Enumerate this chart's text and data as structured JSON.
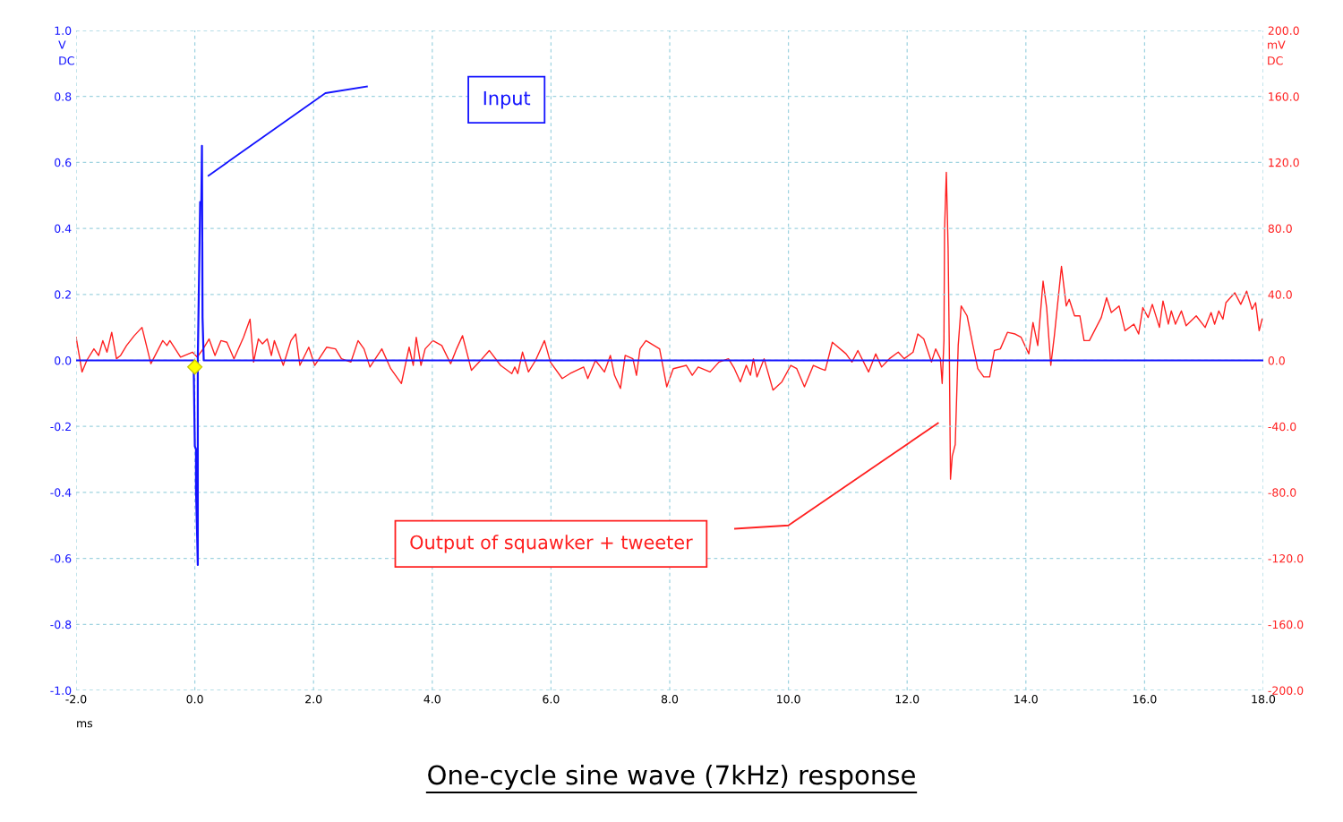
{
  "chart_data": {
    "type": "line",
    "title": "One-cycle sine wave (7kHz) response",
    "xlabel": "ms",
    "ylabel": "V\nDC",
    "y2label": "mV\nDC",
    "xlim": [
      -2.0,
      18.0
    ],
    "xticks": [
      {
        "value": -2,
        "label": "-2.0"
      },
      {
        "value": 0,
        "label": "0.0"
      },
      {
        "value": 2,
        "label": "2.0"
      },
      {
        "value": 4,
        "label": "4.0"
      },
      {
        "value": 6,
        "label": "6.0"
      },
      {
        "value": 8,
        "label": "8.0"
      },
      {
        "value": 10,
        "label": "10.0"
      },
      {
        "value": 12,
        "label": "12.0"
      },
      {
        "value": 14,
        "label": "14.0"
      },
      {
        "value": 16,
        "label": "16.0"
      },
      {
        "value": 18,
        "label": "18.0"
      }
    ],
    "ylim": [
      -1.0,
      1.0
    ],
    "yticks": [
      {
        "value": -1.0,
        "label": "-1.0"
      },
      {
        "value": -0.8,
        "label": "-0.8"
      },
      {
        "value": -0.6,
        "label": "-0.6"
      },
      {
        "value": -0.4,
        "label": "-0.4"
      },
      {
        "value": -0.2,
        "label": "-0.2"
      },
      {
        "value": 0,
        "label": "0.0"
      },
      {
        "value": 0.2,
        "label": "0.2"
      },
      {
        "value": 0.4,
        "label": "0.4"
      },
      {
        "value": 0.6,
        "label": "0.6"
      },
      {
        "value": 0.8,
        "label": "0.8"
      },
      {
        "value": 1.0,
        "label": "1.0"
      }
    ],
    "y2lim": [
      -200.0,
      200.0
    ],
    "y2ticks": [
      {
        "value": -200,
        "label": "-200.0"
      },
      {
        "value": -160,
        "label": "-160.0"
      },
      {
        "value": -120,
        "label": "-120.0"
      },
      {
        "value": -80,
        "label": "-80.0"
      },
      {
        "value": -40,
        "label": "-40.0"
      },
      {
        "value": 0,
        "label": "0.0"
      },
      {
        "value": 40,
        "label": "40.0"
      },
      {
        "value": 80,
        "label": "80.0"
      },
      {
        "value": 120,
        "label": "120.0"
      },
      {
        "value": 160,
        "label": "160.0"
      },
      {
        "value": 200,
        "label": "200.0"
      }
    ],
    "grid": true,
    "marker": "none",
    "line_style": "solid",
    "series": [
      {
        "color": "#ff2020",
        "axis": "y2",
        "x": [
          -2.0,
          -1.9,
          -1.82,
          -1.7,
          -1.62,
          -1.55,
          -1.48,
          -1.4,
          -1.32,
          -1.25,
          -1.15,
          -1.02,
          -0.89,
          -0.74,
          -0.54,
          -0.47,
          -0.42,
          -0.24,
          -0.04,
          0.04,
          0.14,
          0.24,
          0.34,
          0.44,
          0.54,
          0.66,
          0.82,
          0.93,
          0.99,
          1.07,
          1.14,
          1.22,
          1.29,
          1.34,
          1.49,
          1.62,
          1.7,
          1.77,
          1.92,
          2.02,
          2.22,
          2.37,
          2.47,
          2.63,
          2.75,
          2.85,
          2.95,
          3.15,
          3.3,
          3.48,
          3.61,
          3.68,
          3.73,
          3.81,
          3.88,
          4.01,
          4.16,
          4.31,
          4.41,
          4.51,
          4.66,
          4.79,
          4.96,
          5.15,
          5.34,
          5.39,
          5.44,
          5.52,
          5.62,
          5.74,
          5.89,
          5.99,
          6.19,
          6.32,
          6.55,
          6.62,
          6.75,
          6.9,
          7.0,
          7.07,
          7.17,
          7.25,
          7.38,
          7.44,
          7.5,
          7.6,
          7.83,
          7.95,
          8.06,
          8.28,
          8.38,
          8.48,
          8.68,
          8.83,
          8.99,
          9.09,
          9.19,
          9.29,
          9.36,
          9.41,
          9.47,
          9.59,
          9.74,
          9.89,
          10.04,
          10.14,
          10.27,
          10.42,
          10.54,
          10.62,
          10.74,
          10.97,
          11.07,
          11.17,
          11.35,
          11.47,
          11.57,
          11.7,
          11.85,
          11.95,
          12.1,
          12.18,
          12.28,
          12.41,
          12.48,
          12.56,
          12.59,
          12.62,
          12.63,
          12.66,
          12.69,
          12.71,
          12.73,
          12.76,
          12.81,
          12.86,
          12.91,
          13.01,
          13.12,
          13.19,
          13.29,
          13.39,
          13.47,
          13.57,
          13.69,
          13.82,
          13.92,
          14.05,
          14.12,
          14.2,
          14.29,
          14.35,
          14.42,
          14.48,
          14.6,
          14.68,
          14.73,
          14.82,
          14.91,
          14.98,
          15.07,
          15.27,
          15.36,
          15.44,
          15.57,
          15.67,
          15.82,
          15.9,
          15.97,
          16.06,
          16.13,
          16.25,
          16.31,
          16.4,
          16.45,
          16.52,
          16.62,
          16.7,
          16.87,
          17.02,
          17.12,
          17.18,
          17.25,
          17.32,
          17.37,
          17.52,
          17.62,
          17.72,
          17.81,
          17.87,
          17.93,
          17.98
        ],
        "values": [
          14,
          -7,
          0,
          7,
          3,
          12,
          5,
          17,
          1,
          3,
          9,
          15,
          20,
          -2,
          12,
          9,
          12,
          2,
          5,
          2,
          7,
          13,
          3,
          12,
          11,
          1,
          14,
          25,
          -1,
          13,
          10,
          13,
          3,
          12,
          -3,
          12,
          16,
          -3,
          8,
          -3,
          8,
          7,
          1,
          -1,
          12,
          7,
          -4,
          7,
          -5,
          -14,
          8,
          -3,
          14,
          -3,
          7,
          12,
          9,
          -2,
          7,
          15,
          -6,
          -1,
          6,
          -3,
          -8,
          -4,
          -8,
          5,
          -7,
          0,
          12,
          -1,
          -11,
          -8,
          -4,
          -11,
          0,
          -7,
          3,
          -9,
          -17,
          3,
          1,
          -9,
          7,
          12,
          7,
          -16,
          -5,
          -3,
          -9,
          -4,
          -7,
          -1,
          1,
          -5,
          -13,
          -3,
          -9,
          1,
          -10,
          1,
          -18,
          -13,
          -3,
          -5,
          -16,
          -3,
          -5,
          -6,
          11,
          4,
          -1,
          6,
          -7,
          4,
          -4,
          1,
          5,
          1,
          5,
          16,
          13,
          -1,
          7,
          1,
          -14,
          12,
          79,
          114,
          68,
          8,
          -72,
          -58,
          -51,
          9,
          33,
          27,
          7,
          -5,
          -10,
          -10,
          6,
          7,
          17,
          16,
          14,
          4,
          23,
          9,
          48,
          32,
          -3,
          15,
          57,
          33,
          37,
          27,
          27,
          12,
          12,
          26,
          38,
          29,
          33,
          18,
          22,
          16,
          32,
          26,
          34,
          20,
          36,
          22,
          30,
          22,
          30,
          21,
          27,
          20,
          29,
          22,
          30,
          25,
          35,
          41,
          34,
          42,
          31,
          35,
          18,
          25
        ]
      },
      {
        "color": "#1414ff",
        "x": [
          -2.0,
          -0.02,
          0.0,
          0.02,
          0.02,
          0.04,
          0.05,
          0.05,
          0.09,
          0.11,
          0.12,
          0.13,
          0.15,
          18.0
        ],
        "values": [
          0,
          0,
          -0.26,
          -0.27,
          -0.39,
          -0.54,
          -0.62,
          0,
          0.48,
          0.48,
          0.65,
          0.13,
          0,
          0
        ]
      }
    ],
    "annotations": [
      "Output of squawker + tweeter",
      "Input"
    ]
  }
}
